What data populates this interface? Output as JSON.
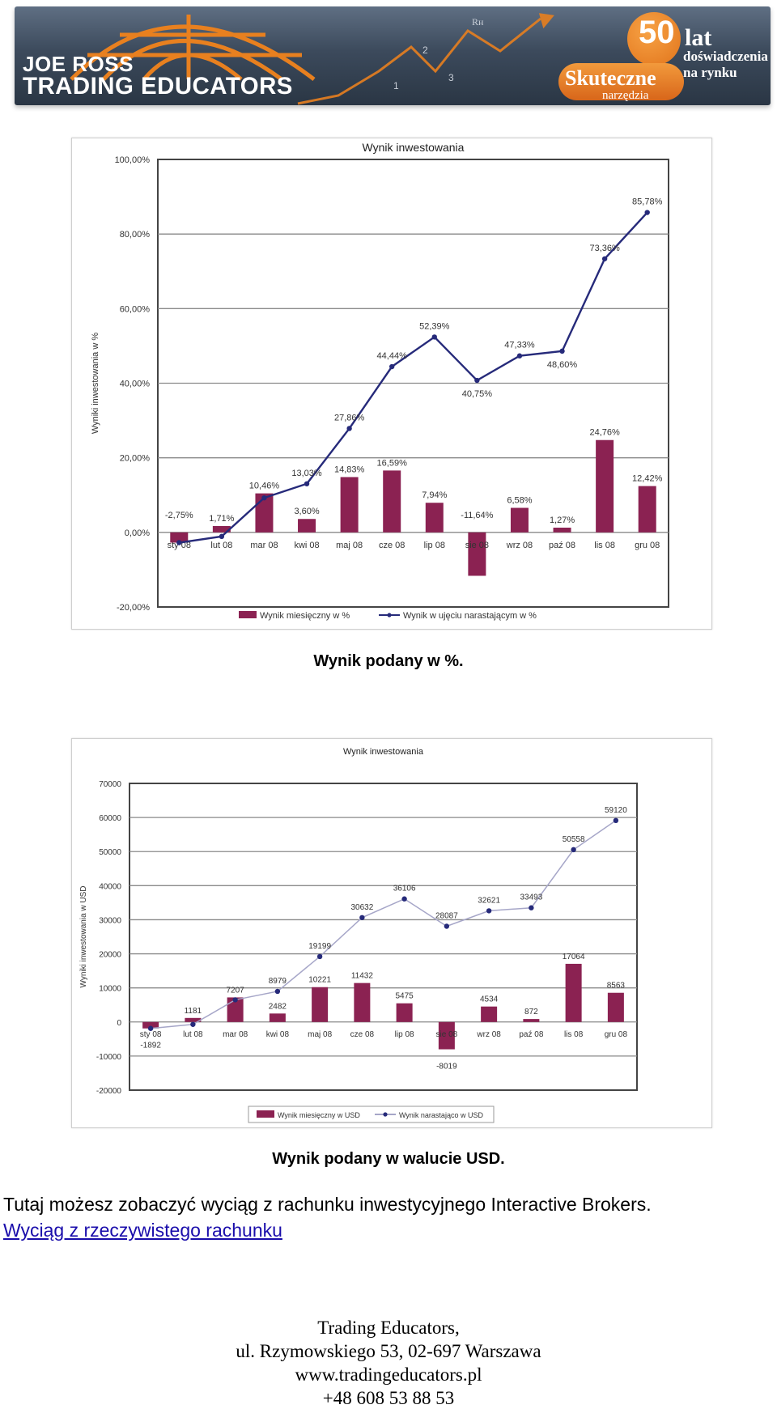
{
  "banner": {
    "brand_line1": "JOE ROSS",
    "brand_line2": "TRADING EDUCATORS",
    "chart_marks": [
      "1",
      "2",
      "3"
    ],
    "rh_label": "Rн",
    "anniversary_number": "50",
    "anniversary_unit": "lat",
    "anniversary_text1": "doświadczenia",
    "anniversary_text2": "na rynku",
    "slogan_word1": "Skuteczne",
    "slogan_word2": "narzędzia",
    "colors": {
      "orange": "#e8801f",
      "navy": "#2d3a4a"
    }
  },
  "chart_data": [
    {
      "type": "bar",
      "title": "Wynik inwestowania",
      "xlabel": "",
      "ylabel": "Wyniki inwestowania w %",
      "ylim": [
        -20,
        100
      ],
      "yticks": [
        "100,00%",
        "80,00%",
        "60,00%",
        "40,00%",
        "20,00%",
        "0,00%",
        "-20,00%"
      ],
      "categories": [
        "sty 08",
        "lut 08",
        "mar 08",
        "kwi 08",
        "maj 08",
        "cze 08",
        "lip 08",
        "sie 08",
        "wrz 08",
        "paź 08",
        "lis 08",
        "gru 08"
      ],
      "series": [
        {
          "name": "Wynik miesięczny w %",
          "kind": "bar",
          "values": [
            -2.75,
            1.71,
            10.46,
            3.6,
            14.83,
            16.59,
            7.94,
            -11.64,
            6.58,
            1.27,
            24.76,
            12.42
          ],
          "labels": [
            "-2,75%",
            "1,71%",
            "10,46%",
            "3,60%",
            "14,83%",
            "16,59%",
            "7,94%",
            "-11,64%",
            "6,58%",
            "1,27%",
            "24,76%",
            "12,42%"
          ]
        },
        {
          "name": "Wynik w ujęciu narastającym w %",
          "kind": "line",
          "values": [
            -2.75,
            -1.09,
            9.26,
            13.03,
            27.86,
            44.44,
            52.39,
            40.75,
            47.33,
            48.6,
            73.36,
            85.78
          ],
          "labels": [
            "",
            "",
            "",
            "13,03%",
            "27,86%",
            "44,44%",
            "52,39%",
            "40,75%",
            "47,33%",
            "48,60%",
            "73,36%",
            "85,78%"
          ]
        }
      ],
      "colors": {
        "bar": "#8b2252",
        "line": "#262a7a"
      },
      "legend": "bottom"
    },
    {
      "type": "bar",
      "title": "Wynik inwestowania",
      "xlabel": "",
      "ylabel": "Wyniki inwestowania w USD",
      "ylim": [
        -20000,
        70000
      ],
      "yticks": [
        "70000",
        "60000",
        "50000",
        "40000",
        "30000",
        "20000",
        "10000",
        "0",
        "-10000",
        "-20000"
      ],
      "categories": [
        "sty 08",
        "lut 08",
        "mar 08",
        "kwi 08",
        "maj 08",
        "cze 08",
        "lip 08",
        "sie 08",
        "wrz 08",
        "paź 08",
        "lis 08",
        "gru 08"
      ],
      "series": [
        {
          "name": "Wynik miesięczny w USD",
          "kind": "bar",
          "values": [
            -1892,
            1181,
            7207,
            2482,
            10221,
            11432,
            5475,
            -8019,
            4534,
            872,
            17064,
            8563
          ],
          "labels": [
            "-1892",
            "1181",
            "7207",
            "2482",
            "10221",
            "11432",
            "5475",
            "-8019",
            "4534",
            "872",
            "17064",
            "8563"
          ]
        },
        {
          "name": "Wynik narastająco w USD",
          "kind": "line",
          "values": [
            -1892,
            -711,
            6496,
            8979,
            19199,
            30632,
            36106,
            28087,
            32621,
            33493,
            50558,
            59120
          ],
          "labels": [
            "",
            "",
            "",
            "8979",
            "19199",
            "30632",
            "36106",
            "28087",
            "32621",
            "33493",
            "50558",
            "59120"
          ]
        }
      ],
      "colors": {
        "bar": "#8b2252",
        "line": "#a6a6c8"
      },
      "legend": "bottom"
    }
  ],
  "captions": {
    "chart1": "Wynik podany w %.",
    "chart2": "Wynik podany w walucie USD."
  },
  "body": {
    "text": "Tutaj możesz zobaczyć wyciąg z rachunku inwestycyjnego Interactive Brokers.",
    "link": "Wyciąg z rzeczywistego rachunku"
  },
  "footer": {
    "line1": "Trading Educators,",
    "line2": "ul. Rzymowskiego 53, 02-697 Warszawa",
    "line3": "www.tradingeducators.pl",
    "line4": "+48 608 53 88 53"
  }
}
